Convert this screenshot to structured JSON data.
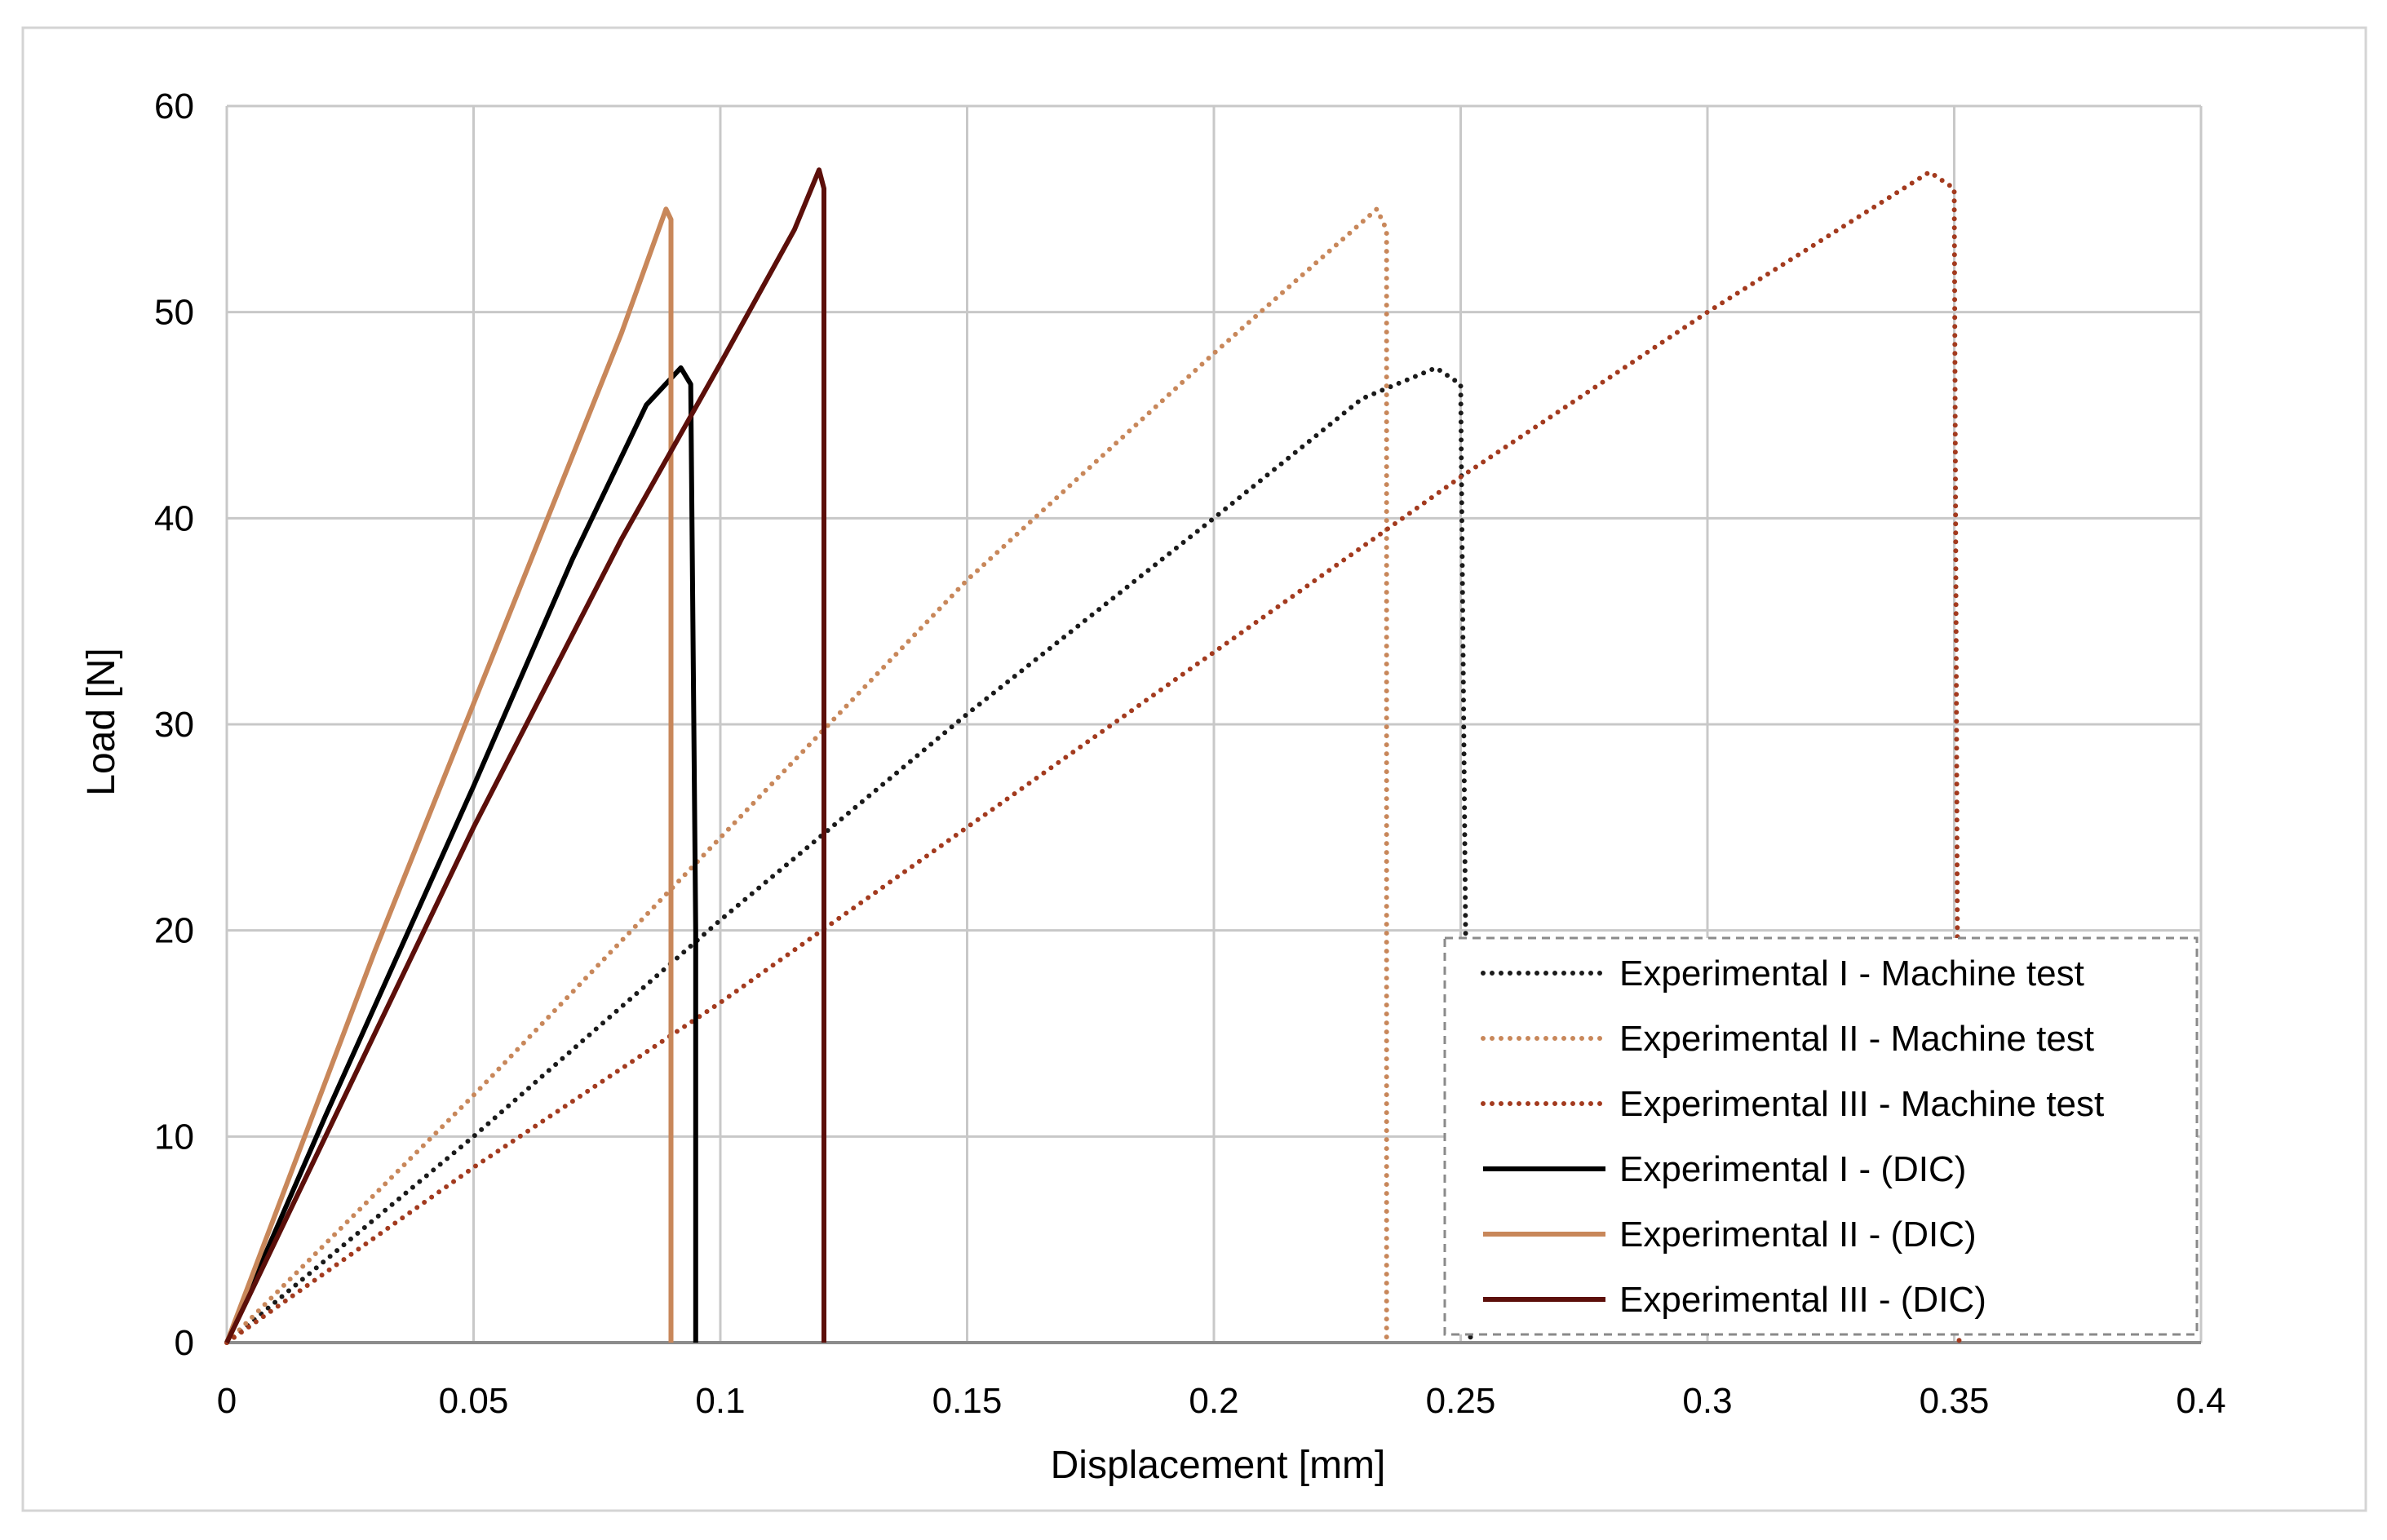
{
  "chart_data": {
    "type": "line",
    "title": "",
    "xlabel": "Displacement [mm]",
    "ylabel": "Load [N]",
    "xlim": [
      0,
      0.4
    ],
    "ylim": [
      0,
      60
    ],
    "x_ticks": [
      "0",
      "0.05",
      "0.1",
      "0.15",
      "0.2",
      "0.25",
      "0.3",
      "0.35",
      "0.4"
    ],
    "y_ticks": [
      "0",
      "10",
      "20",
      "30",
      "40",
      "50",
      "60"
    ],
    "grid": true,
    "legend_position": "bottom-right",
    "series": [
      {
        "name": "Experimental I - Machine test",
        "color": "#1a1a1a",
        "style": "dotted",
        "points": [
          [
            0,
            0
          ],
          [
            0.05,
            10
          ],
          [
            0.1,
            20.5
          ],
          [
            0.15,
            30.5
          ],
          [
            0.2,
            40
          ],
          [
            0.23,
            45.8
          ],
          [
            0.245,
            47.3
          ],
          [
            0.25,
            46.5
          ],
          [
            0.251,
            20
          ],
          [
            0.252,
            0
          ]
        ]
      },
      {
        "name": "Experimental II - Machine test",
        "color": "#c8875a",
        "style": "dotted",
        "points": [
          [
            0,
            0
          ],
          [
            0.05,
            12
          ],
          [
            0.1,
            24.5
          ],
          [
            0.15,
            37
          ],
          [
            0.2,
            48
          ],
          [
            0.233,
            55
          ],
          [
            0.235,
            54
          ],
          [
            0.235,
            0
          ]
        ]
      },
      {
        "name": "Experimental III - Machine test",
        "color": "#a33a1e",
        "style": "dotted",
        "points": [
          [
            0,
            0
          ],
          [
            0.05,
            8.5
          ],
          [
            0.1,
            16.5
          ],
          [
            0.15,
            25
          ],
          [
            0.2,
            33.5
          ],
          [
            0.25,
            42
          ],
          [
            0.3,
            50
          ],
          [
            0.345,
            56.8
          ],
          [
            0.35,
            56
          ],
          [
            0.351,
            0
          ]
        ]
      },
      {
        "name": "Experimental I - (DIC)",
        "color": "#000000",
        "style": "solid",
        "points": [
          [
            0,
            0
          ],
          [
            0.02,
            11
          ],
          [
            0.05,
            27
          ],
          [
            0.07,
            38
          ],
          [
            0.085,
            45.5
          ],
          [
            0.092,
            47.3
          ],
          [
            0.094,
            46.5
          ],
          [
            0.095,
            20
          ],
          [
            0.095,
            0
          ]
        ]
      },
      {
        "name": "Experimental II - (DIC)",
        "color": "#c8875a",
        "style": "solid",
        "points": [
          [
            0,
            0
          ],
          [
            0.03,
            19
          ],
          [
            0.06,
            37
          ],
          [
            0.08,
            49
          ],
          [
            0.089,
            55
          ],
          [
            0.09,
            54.5
          ],
          [
            0.09,
            0
          ]
        ]
      },
      {
        "name": "Experimental III - (DIC)",
        "color": "#5c0f0a",
        "style": "solid",
        "points": [
          [
            0,
            0
          ],
          [
            0.02,
            10
          ],
          [
            0.05,
            25
          ],
          [
            0.08,
            39
          ],
          [
            0.1,
            47.5
          ],
          [
            0.115,
            54
          ],
          [
            0.12,
            56.9
          ],
          [
            0.121,
            56
          ],
          [
            0.121,
            0
          ]
        ]
      }
    ]
  }
}
